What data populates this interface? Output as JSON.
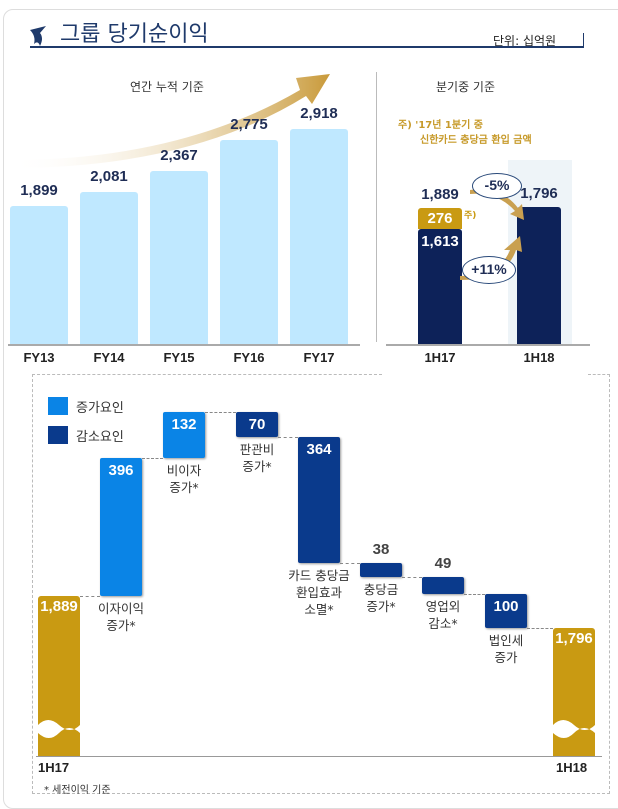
{
  "header": {
    "title": "그룹 당기순이익",
    "unit": "단위: 십억원"
  },
  "colors": {
    "annual_bar": "#bfe8ff",
    "navy": "#0d2259",
    "gold": "#c99a12",
    "increase": "#0a84e6",
    "decrease": "#0a3a8c"
  },
  "chart_data": [
    {
      "type": "bar",
      "title": "연간 누적 기준",
      "categories": [
        "FY13",
        "FY14",
        "FY15",
        "FY16",
        "FY17"
      ],
      "values": [
        1899,
        2081,
        2367,
        2775,
        2918
      ],
      "labels": [
        "1,899",
        "2,081",
        "2,367",
        "2,775",
        "2,918"
      ]
    },
    {
      "type": "bar",
      "title": "분기중 기준",
      "note_line1": "주) '17년 1분기 중",
      "note_line2": "신한카드 충당금 환입 금액",
      "note_marker": "주)",
      "categories": [
        "1H17",
        "1H18"
      ],
      "series": [
        {
          "values": [
            1613,
            1796
          ],
          "labels": [
            "1,613",
            "1,796"
          ]
        },
        {
          "values": [
            276,
            0
          ],
          "labels": [
            "276",
            ""
          ]
        }
      ],
      "total_label": "1,889",
      "change_total": "-5%",
      "change_ex": "+11%"
    },
    {
      "type": "waterfall",
      "legend": {
        "increase": "증가요인",
        "decrease": "감소요인"
      },
      "start": {
        "label": "1H17",
        "value": 1889,
        "text": "1,889"
      },
      "end": {
        "label": "1H18",
        "value": 1796,
        "text": "1,796"
      },
      "steps": [
        {
          "value": 396,
          "text": "396",
          "kind": "increase",
          "label": "이자이익\n증가*"
        },
        {
          "value": 132,
          "text": "132",
          "kind": "increase",
          "label": "비이자\n증가*"
        },
        {
          "value": -70,
          "text": "70",
          "kind": "decrease",
          "label": "판관비\n증가*"
        },
        {
          "value": -364,
          "text": "364",
          "kind": "decrease",
          "label": "카드 충당금\n환입효과\n소멸*"
        },
        {
          "value": -38,
          "text": "38",
          "kind": "decrease",
          "label": "충당금\n증가*"
        },
        {
          "value": -49,
          "text": "49",
          "kind": "decrease",
          "label": "영업외\n감소*"
        },
        {
          "value": -100,
          "text": "100",
          "kind": "decrease",
          "label": "법인세\n증가"
        }
      ],
      "footnote": "* 세전이익 기준"
    }
  ]
}
